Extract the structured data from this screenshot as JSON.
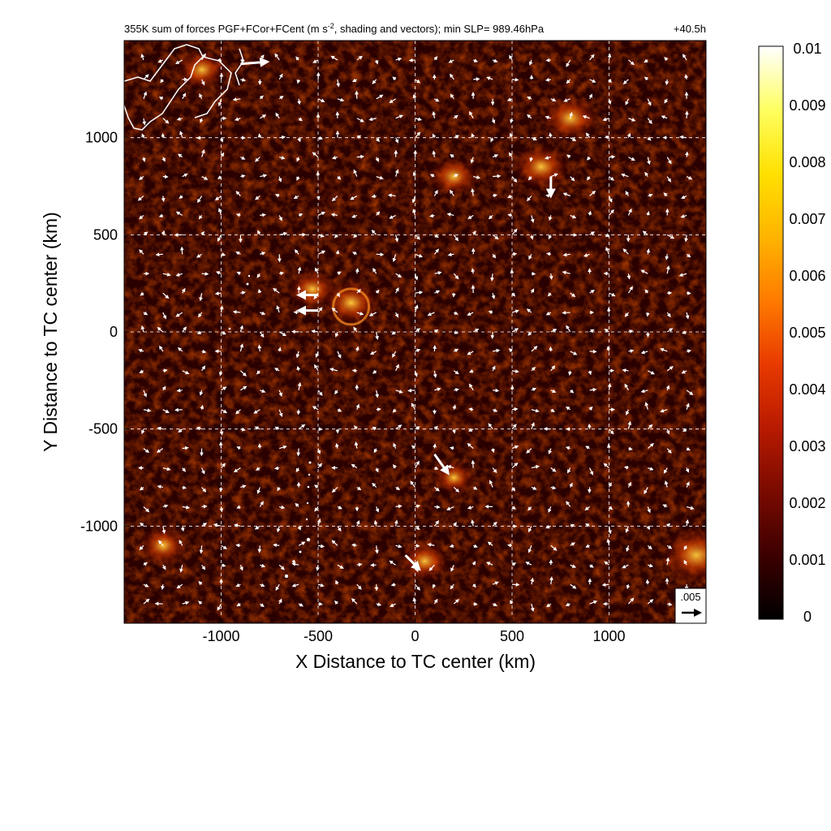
{
  "title_left": "355K sum of forces PGF+FCor+FCent (m s",
  "title_sup": "-2",
  "title_rest": ", shading and vectors); min SLP= 989.46hPa",
  "forecast_time": "+40.5h",
  "vector_key_label": ".005",
  "colors": {
    "colormap": [
      "#000000",
      "#3c0000",
      "#7a0a00",
      "#b81a00",
      "#e83a00",
      "#ff7a00",
      "#ffb400",
      "#ffe000",
      "#ffff60",
      "#ffffff"
    ],
    "grid": "#ffffff",
    "vectors": "#ffffff",
    "coastline": "#ffffff"
  },
  "chart_data": {
    "type": "heatmap",
    "xlabel": "X Distance to TC center (km)",
    "ylabel": "Y Distance to TC center (km)",
    "xlim": [
      -1500,
      1500
    ],
    "ylim": [
      -1500,
      1500
    ],
    "xticks": [
      -1000,
      -500,
      0,
      500,
      1000
    ],
    "yticks": [
      1000,
      500,
      0,
      -500,
      -1000
    ],
    "grid": true,
    "colorbar": {
      "range": [
        0,
        0.01
      ],
      "ticks": [
        "0.01",
        "0.009",
        "0.008",
        "0.007",
        "0.006",
        "0.005",
        "0.004",
        "0.003",
        "0.002",
        "0.001",
        "0"
      ]
    },
    "vector_key": 0.005,
    "hotspots": [
      {
        "x": -330,
        "y": 150,
        "v": 0.005
      },
      {
        "x": -530,
        "y": 220,
        "v": 0.004
      },
      {
        "x": 650,
        "y": 850,
        "v": 0.005
      },
      {
        "x": 200,
        "y": 800,
        "v": 0.004
      },
      {
        "x": 800,
        "y": 1100,
        "v": 0.005
      },
      {
        "x": 1450,
        "y": -1150,
        "v": 0.007
      },
      {
        "x": 50,
        "y": -1180,
        "v": 0.004
      },
      {
        "x": 200,
        "y": -750,
        "v": 0.003
      },
      {
        "x": -1300,
        "y": -1100,
        "v": 0.004
      },
      {
        "x": -1100,
        "y": 1350,
        "v": 0.004
      }
    ],
    "large_vectors": [
      {
        "x": -900,
        "y": 1380,
        "u": 0.005,
        "v": 0.0004
      },
      {
        "x": 100,
        "y": -630,
        "u": 0.0025,
        "v": -0.0035
      },
      {
        "x": -50,
        "y": -1150,
        "u": 0.0025,
        "v": -0.0025
      },
      {
        "x": 700,
        "y": 800,
        "u": 0.0,
        "v": -0.0035
      },
      {
        "x": -500,
        "y": 190,
        "u": -0.0035,
        "v": 0.0
      },
      {
        "x": -500,
        "y": 110,
        "u": -0.0035,
        "v": 0.0
      }
    ]
  }
}
